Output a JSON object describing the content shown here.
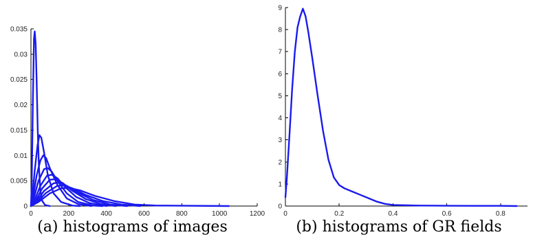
{
  "chart_data": [
    {
      "type": "line",
      "caption": "(a) histograms of images",
      "title": "",
      "xlabel": "",
      "ylabel": "",
      "xlim": [
        0,
        1200
      ],
      "ylim": [
        0,
        0.035
      ],
      "xticks": [
        "0",
        "200",
        "400",
        "600",
        "800",
        "1000",
        "1200"
      ],
      "yticks": [
        "0",
        "0.005",
        "0.01",
        "0.015",
        "0.02",
        "0.025",
        "0.03",
        "0.035"
      ],
      "grid": false,
      "color": "#1a1aee",
      "series": [
        {
          "values": [
            [
              0,
              0
            ],
            [
              4,
              0.004
            ],
            [
              10,
              0.02
            ],
            [
              16,
              0.033
            ],
            [
              20,
              0.0345
            ],
            [
              25,
              0.032
            ],
            [
              30,
              0.025
            ],
            [
              36,
              0.015
            ],
            [
              42,
              0.008
            ],
            [
              50,
              0.003
            ],
            [
              60,
              0.001
            ],
            [
              75,
              0.0002
            ],
            [
              100,
              0
            ]
          ]
        },
        {
          "values": [
            [
              0,
              0
            ],
            [
              8,
              0.002
            ],
            [
              20,
              0.007
            ],
            [
              35,
              0.012
            ],
            [
              45,
              0.014
            ],
            [
              55,
              0.0135
            ],
            [
              70,
              0.0105
            ],
            [
              90,
              0.006
            ],
            [
              120,
              0.0025
            ],
            [
              160,
              0.0008
            ],
            [
              220,
              0.0001
            ],
            [
              260,
              0
            ]
          ]
        },
        {
          "values": [
            [
              0,
              0
            ],
            [
              10,
              0.0015
            ],
            [
              30,
              0.006
            ],
            [
              50,
              0.009
            ],
            [
              65,
              0.01
            ],
            [
              80,
              0.0095
            ],
            [
              100,
              0.0075
            ],
            [
              140,
              0.0042
            ],
            [
              190,
              0.0015
            ],
            [
              250,
              0.0004
            ],
            [
              320,
              0
            ]
          ]
        },
        {
          "values": [
            [
              0,
              0
            ],
            [
              15,
              0.0015
            ],
            [
              40,
              0.005
            ],
            [
              70,
              0.0073
            ],
            [
              90,
              0.0075
            ],
            [
              110,
              0.0068
            ],
            [
              140,
              0.005
            ],
            [
              190,
              0.0025
            ],
            [
              250,
              0.0008
            ],
            [
              330,
              0.0001
            ],
            [
              380,
              0
            ]
          ]
        },
        {
          "values": [
            [
              0,
              0
            ],
            [
              20,
              0.0012
            ],
            [
              50,
              0.004
            ],
            [
              85,
              0.006
            ],
            [
              110,
              0.0062
            ],
            [
              140,
              0.0055
            ],
            [
              180,
              0.0038
            ],
            [
              240,
              0.0018
            ],
            [
              310,
              0.0006
            ],
            [
              400,
              0
            ]
          ]
        },
        {
          "values": [
            [
              0,
              0
            ],
            [
              25,
              0.001
            ],
            [
              60,
              0.0035
            ],
            [
              100,
              0.0052
            ],
            [
              130,
              0.0053
            ],
            [
              170,
              0.0045
            ],
            [
              220,
              0.003
            ],
            [
              290,
              0.0014
            ],
            [
              370,
              0.0004
            ],
            [
              450,
              0
            ]
          ]
        },
        {
          "values": [
            [
              0,
              0
            ],
            [
              30,
              0.001
            ],
            [
              70,
              0.003
            ],
            [
              120,
              0.0045
            ],
            [
              150,
              0.0046
            ],
            [
              190,
              0.004
            ],
            [
              250,
              0.0026
            ],
            [
              330,
              0.0012
            ],
            [
              420,
              0.0003
            ],
            [
              510,
              0
            ]
          ]
        },
        {
          "values": [
            [
              0,
              0
            ],
            [
              35,
              0.0009
            ],
            [
              80,
              0.0026
            ],
            [
              140,
              0.004
            ],
            [
              175,
              0.0041
            ],
            [
              220,
              0.0035
            ],
            [
              290,
              0.0022
            ],
            [
              380,
              0.001
            ],
            [
              480,
              0.0003
            ],
            [
              580,
              0
            ]
          ]
        },
        {
          "values": [
            [
              0,
              0
            ],
            [
              40,
              0.0008
            ],
            [
              100,
              0.0025
            ],
            [
              160,
              0.0035
            ],
            [
              200,
              0.0036
            ],
            [
              260,
              0.0031
            ],
            [
              340,
              0.002
            ],
            [
              440,
              0.001
            ],
            [
              550,
              0.0003
            ],
            [
              660,
              0.0001
            ],
            [
              1050,
              0
            ]
          ]
        }
      ]
    },
    {
      "type": "line",
      "caption": "(b) histograms of GR fields",
      "title": "",
      "xlabel": "",
      "ylabel": "",
      "xlim": [
        0,
        0.9
      ],
      "ylim": [
        0,
        9
      ],
      "xticks": [
        "0",
        "0.2",
        "0.4",
        "0.6",
        "0.8"
      ],
      "yticks": [
        "0",
        "1",
        "2",
        "3",
        "4",
        "5",
        "6",
        "7",
        "8",
        "9"
      ],
      "grid": false,
      "color": "#1a1aee",
      "series": [
        {
          "values": [
            [
              0,
              0.4
            ],
            [
              0.005,
              1.2
            ],
            [
              0.015,
              3.2
            ],
            [
              0.025,
              5.3
            ],
            [
              0.035,
              7.0
            ],
            [
              0.045,
              8.1
            ],
            [
              0.055,
              8.6
            ],
            [
              0.065,
              8.95
            ],
            [
              0.075,
              8.6
            ],
            [
              0.085,
              7.9
            ],
            [
              0.1,
              6.7
            ],
            [
              0.12,
              5.0
            ],
            [
              0.14,
              3.4
            ],
            [
              0.16,
              2.1
            ],
            [
              0.18,
              1.3
            ],
            [
              0.2,
              0.95
            ],
            [
              0.22,
              0.8
            ],
            [
              0.25,
              0.65
            ],
            [
              0.28,
              0.5
            ],
            [
              0.31,
              0.35
            ],
            [
              0.34,
              0.2
            ],
            [
              0.37,
              0.1
            ],
            [
              0.4,
              0.05
            ],
            [
              0.5,
              0.02
            ],
            [
              0.6,
              0.015
            ],
            [
              0.7,
              0.01
            ],
            [
              0.8,
              0.01
            ],
            [
              0.86,
              0
            ]
          ]
        }
      ]
    }
  ]
}
